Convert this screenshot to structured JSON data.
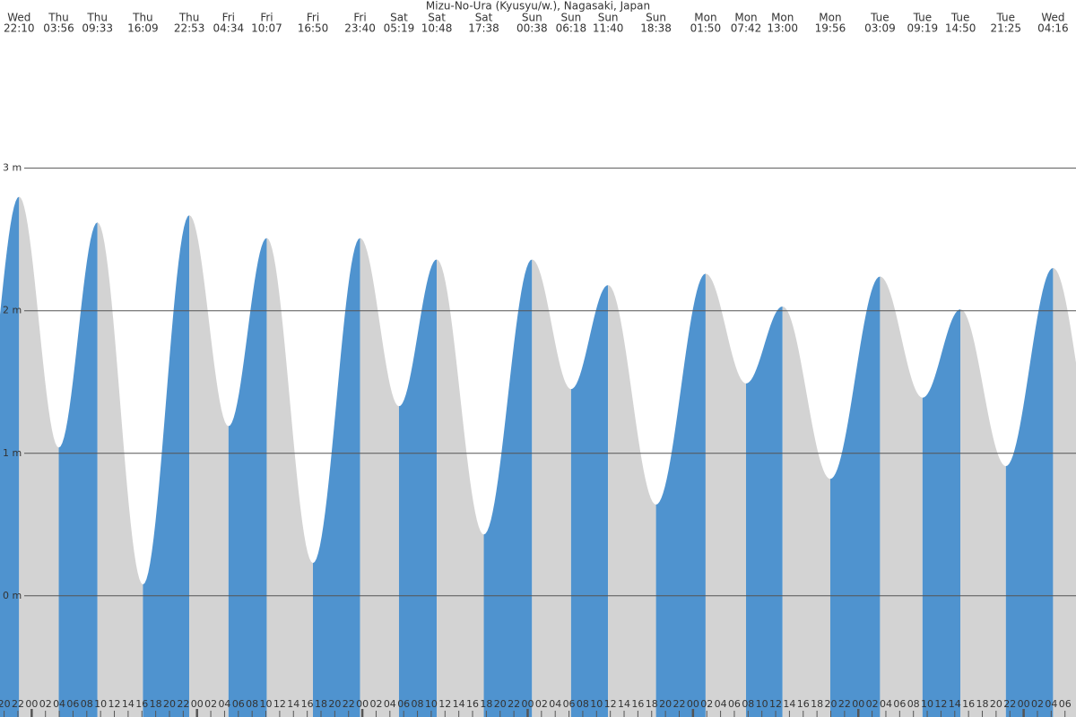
{
  "chart_data": {
    "type": "tide",
    "title": "Mizu-No-Ura (Kyusyu/w.), Nagasaki, Japan",
    "x": [
      22.17,
      27.93,
      33.55,
      40.15,
      46.88,
      52.57,
      58.12,
      64.83,
      71.67,
      77.32,
      82.8,
      89.63,
      96.63,
      102.3,
      107.67,
      114.63,
      121.83,
      127.7,
      133,
      139.93,
      147.15,
      153.32,
      158.83,
      165.42,
      172.27
    ],
    "values": [
      2.8,
      1.04,
      2.62,
      0.08,
      2.67,
      1.19,
      2.51,
      0.23,
      2.51,
      1.33,
      2.36,
      0.43,
      2.36,
      1.45,
      2.18,
      0.64,
      2.26,
      1.49,
      2.03,
      0.82,
      2.24,
      1.39,
      2.01,
      0.91,
      2.3
    ],
    "day_labels": [
      "Wed",
      "Thu",
      "Thu",
      "Thu",
      "Thu",
      "Fri",
      "Fri",
      "Fri",
      "Fri",
      "Sat",
      "Sat",
      "Sat",
      "Sun",
      "Sun",
      "Sun",
      "Sun",
      "Mon",
      "Mon",
      "Mon",
      "Mon",
      "Tue",
      "Tue",
      "Tue",
      "Tue",
      "Wed"
    ],
    "time_labels": [
      "22:10",
      "03:56",
      "09:33",
      "16:09",
      "22:53",
      "04:34",
      "10:07",
      "16:50",
      "23:40",
      "05:19",
      "10:48",
      "17:38",
      "00:38",
      "06:18",
      "11:40",
      "18:38",
      "01:50",
      "07:42",
      "13:00",
      "19:56",
      "03:09",
      "09:19",
      "14:50",
      "21:25",
      "04:16"
    ],
    "colors": {
      "rising": "#4f93cf",
      "falling": "#d3d3d3"
    },
    "xlim": [
      19.4,
      175.6
    ],
    "ylim": [
      -0.85,
      4.18
    ],
    "yticks": [
      {
        "value": 0,
        "label": "0 m"
      },
      {
        "value": 1,
        "label": "1 m"
      },
      {
        "value": 2,
        "label": "2 m"
      },
      {
        "value": 3,
        "label": "3 m"
      }
    ],
    "grid": true,
    "xticks": [
      20,
      22,
      {
        "value": 24,
        "label": "00"
      },
      {
        "value": 26,
        "label": "02"
      },
      {
        "value": 28,
        "label": "04"
      },
      {
        "value": 30,
        "label": "06"
      },
      {
        "value": 32,
        "label": "08"
      },
      {
        "value": 34,
        "label": "10"
      },
      {
        "value": 36,
        "label": "12"
      },
      {
        "value": 38,
        "label": "14"
      },
      {
        "value": 40,
        "label": "16"
      },
      {
        "value": 42,
        "label": "18"
      },
      {
        "value": 44,
        "label": "20"
      },
      {
        "value": 46,
        "label": "22"
      },
      {
        "value": 48,
        "label": "00"
      },
      {
        "value": 50,
        "label": "02"
      },
      {
        "value": 52,
        "label": "04"
      },
      {
        "value": 54,
        "label": "06"
      },
      {
        "value": 56,
        "label": "08"
      },
      {
        "value": 58,
        "label": "10"
      },
      {
        "value": 60,
        "label": "12"
      },
      {
        "value": 62,
        "label": "14"
      },
      {
        "value": 64,
        "label": "16"
      },
      {
        "value": 66,
        "label": "18"
      },
      {
        "value": 68,
        "label": "20"
      },
      {
        "value": 70,
        "label": "22"
      },
      {
        "value": 72,
        "label": "00"
      },
      {
        "value": 74,
        "label": "02"
      },
      {
        "value": 76,
        "label": "04"
      },
      {
        "value": 78,
        "label": "06"
      },
      {
        "value": 80,
        "label": "08"
      },
      {
        "value": 82,
        "label": "10"
      },
      {
        "value": 84,
        "label": "12"
      },
      {
        "value": 86,
        "label": "14"
      },
      {
        "value": 88,
        "label": "16"
      },
      {
        "value": 90,
        "label": "18"
      },
      {
        "value": 92,
        "label": "20"
      },
      {
        "value": 94,
        "label": "22"
      },
      {
        "value": 96,
        "label": "00"
      },
      {
        "value": 98,
        "label": "02"
      },
      {
        "value": 100,
        "label": "04"
      },
      {
        "value": 102,
        "label": "06"
      },
      {
        "value": 104,
        "label": "08"
      },
      {
        "value": 106,
        "label": "10"
      },
      {
        "value": 108,
        "label": "12"
      },
      {
        "value": 110,
        "label": "14"
      },
      {
        "value": 112,
        "label": "16"
      },
      {
        "value": 114,
        "label": "18"
      },
      {
        "value": 116,
        "label": "20"
      },
      {
        "value": 118,
        "label": "22"
      },
      {
        "value": 120,
        "label": "00"
      },
      {
        "value": 122,
        "label": "02"
      },
      {
        "value": 124,
        "label": "04"
      },
      {
        "value": 126,
        "label": "06"
      },
      {
        "value": 128,
        "label": "08"
      },
      {
        "value": 130,
        "label": "10"
      },
      {
        "value": 132,
        "label": "12"
      },
      {
        "value": 134,
        "label": "14"
      },
      {
        "value": 136,
        "label": "16"
      },
      {
        "value": 138,
        "label": "18"
      },
      {
        "value": 140,
        "label": "20"
      },
      {
        "value": 142,
        "label": "22"
      },
      {
        "value": 144,
        "label": "00"
      },
      {
        "value": 146,
        "label": "02"
      },
      {
        "value": 148,
        "label": "04"
      },
      {
        "value": 150,
        "label": "06"
      },
      {
        "value": 152,
        "label": "08"
      },
      {
        "value": 154,
        "label": "10"
      },
      {
        "value": 156,
        "label": "12"
      },
      {
        "value": 158,
        "label": "14"
      },
      {
        "value": 160,
        "label": "16"
      },
      {
        "value": 162,
        "label": "18"
      },
      {
        "value": 164,
        "label": "20"
      },
      {
        "value": 166,
        "label": "22"
      },
      {
        "value": 168,
        "label": "00"
      },
      {
        "value": 170,
        "label": "02"
      },
      {
        "value": 172,
        "label": "04"
      },
      {
        "value": 174,
        "label": "06"
      }
    ]
  }
}
